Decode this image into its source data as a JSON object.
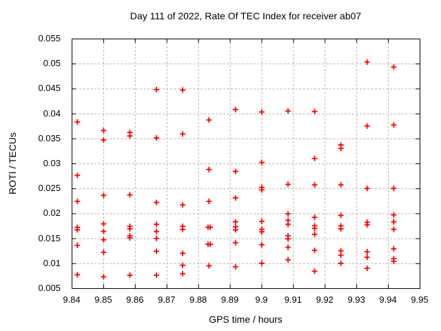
{
  "chart_data": {
    "type": "scatter",
    "title": "Day 111 of 2022, Rate Of TEC Index for receiver ab07",
    "xlabel": "GPS time / hours",
    "ylabel": "ROTI / TECUs",
    "xlim": [
      9.84,
      9.95
    ],
    "ylim": [
      0.005,
      0.055
    ],
    "xtick_values": [
      9.84,
      9.85,
      9.86,
      9.87,
      9.88,
      9.89,
      9.9,
      9.91,
      9.92,
      9.93,
      9.94,
      9.95
    ],
    "xtick_labels": [
      "9.84",
      "9.85",
      "9.86",
      "9.87",
      "9.88",
      "9.89",
      "9.9",
      "9.91",
      "9.92",
      "9.93",
      "9.94",
      "9.95"
    ],
    "ytick_values": [
      0.005,
      0.01,
      0.015,
      0.02,
      0.025,
      0.03,
      0.035,
      0.04,
      0.045,
      0.05,
      0.055
    ],
    "ytick_labels": [
      "0.005",
      "0.01",
      "0.015",
      "0.02",
      "0.025",
      "0.03",
      "0.035",
      "0.04",
      "0.045",
      "0.05",
      "0.055"
    ],
    "grid": true,
    "legend": null,
    "marker": {
      "shape": "plus",
      "color": "#ff0000",
      "size": 8
    },
    "axis_color": "#000000",
    "grid_color": "#b0b0b0",
    "background_color": "#ffffff",
    "points": [
      [
        9.8418,
        0.0383
      ],
      [
        9.8418,
        0.0276
      ],
      [
        9.8418,
        0.0224
      ],
      [
        9.8418,
        0.0172
      ],
      [
        9.8418,
        0.0167
      ],
      [
        9.8418,
        0.0136
      ],
      [
        9.8418,
        0.0077
      ],
      [
        9.8501,
        0.0366
      ],
      [
        9.8501,
        0.0347
      ],
      [
        9.8501,
        0.0236
      ],
      [
        9.8501,
        0.0179
      ],
      [
        9.8501,
        0.0164
      ],
      [
        9.8501,
        0.0147
      ],
      [
        9.8501,
        0.0122
      ],
      [
        9.8501,
        0.0073
      ],
      [
        9.8584,
        0.0362
      ],
      [
        9.8584,
        0.0355
      ],
      [
        9.8584,
        0.0237
      ],
      [
        9.8584,
        0.0174
      ],
      [
        9.8584,
        0.0169
      ],
      [
        9.8584,
        0.0155
      ],
      [
        9.8584,
        0.0151
      ],
      [
        9.8584,
        0.0076
      ],
      [
        9.8668,
        0.0448
      ],
      [
        9.8668,
        0.0351
      ],
      [
        9.8668,
        0.0222
      ],
      [
        9.8668,
        0.0178
      ],
      [
        9.8668,
        0.0164
      ],
      [
        9.8668,
        0.015
      ],
      [
        9.8668,
        0.0124
      ],
      [
        9.8668,
        0.0076
      ],
      [
        9.8751,
        0.0447
      ],
      [
        9.8751,
        0.0359
      ],
      [
        9.8751,
        0.0217
      ],
      [
        9.8751,
        0.0174
      ],
      [
        9.8751,
        0.0168
      ],
      [
        9.8751,
        0.012
      ],
      [
        9.8751,
        0.0096
      ],
      [
        9.8751,
        0.0079
      ],
      [
        9.8834,
        0.0387
      ],
      [
        9.8834,
        0.0288
      ],
      [
        9.8834,
        0.0224
      ],
      [
        9.8831,
        0.0172
      ],
      [
        9.8838,
        0.0172
      ],
      [
        9.8831,
        0.0138
      ],
      [
        9.8838,
        0.0138
      ],
      [
        9.8834,
        0.0095
      ],
      [
        9.8918,
        0.0408
      ],
      [
        9.8918,
        0.0284
      ],
      [
        9.8918,
        0.0231
      ],
      [
        9.8918,
        0.0183
      ],
      [
        9.8918,
        0.0173
      ],
      [
        9.8918,
        0.0167
      ],
      [
        9.8918,
        0.0141
      ],
      [
        9.8918,
        0.0093
      ],
      [
        9.9001,
        0.0403
      ],
      [
        9.9001,
        0.0302
      ],
      [
        9.9001,
        0.0252
      ],
      [
        9.9001,
        0.0247
      ],
      [
        9.9001,
        0.0184
      ],
      [
        9.9001,
        0.0168
      ],
      [
        9.9001,
        0.0163
      ],
      [
        9.9001,
        0.0137
      ],
      [
        9.9001,
        0.01
      ],
      [
        9.9084,
        0.0405
      ],
      [
        9.9084,
        0.0258
      ],
      [
        9.9084,
        0.0199
      ],
      [
        9.9084,
        0.0186
      ],
      [
        9.9084,
        0.0178
      ],
      [
        9.9084,
        0.0155
      ],
      [
        9.9084,
        0.0149
      ],
      [
        9.9084,
        0.0132
      ],
      [
        9.9084,
        0.0107
      ],
      [
        9.9168,
        0.0404
      ],
      [
        9.9168,
        0.031
      ],
      [
        9.9168,
        0.0257
      ],
      [
        9.9168,
        0.0192
      ],
      [
        9.9168,
        0.0175
      ],
      [
        9.9168,
        0.017
      ],
      [
        9.9168,
        0.0158
      ],
      [
        9.9168,
        0.0126
      ],
      [
        9.9168,
        0.0084
      ],
      [
        9.9251,
        0.0337
      ],
      [
        9.9251,
        0.033
      ],
      [
        9.9251,
        0.0257
      ],
      [
        9.9251,
        0.0196
      ],
      [
        9.9251,
        0.0175
      ],
      [
        9.9251,
        0.0169
      ],
      [
        9.9251,
        0.0125
      ],
      [
        9.9251,
        0.0116
      ],
      [
        9.9251,
        0.01
      ],
      [
        9.9334,
        0.0503
      ],
      [
        9.9334,
        0.0375
      ],
      [
        9.9334,
        0.025
      ],
      [
        9.9334,
        0.0182
      ],
      [
        9.9334,
        0.0177
      ],
      [
        9.9334,
        0.0123
      ],
      [
        9.9334,
        0.0112
      ],
      [
        9.9334,
        0.009
      ],
      [
        9.9418,
        0.0493
      ],
      [
        9.9418,
        0.0377
      ],
      [
        9.9418,
        0.025
      ],
      [
        9.9418,
        0.0197
      ],
      [
        9.9418,
        0.0183
      ],
      [
        9.9418,
        0.0168
      ],
      [
        9.9418,
        0.0129
      ],
      [
        9.9418,
        0.0109
      ],
      [
        9.9418,
        0.0104
      ]
    ]
  }
}
